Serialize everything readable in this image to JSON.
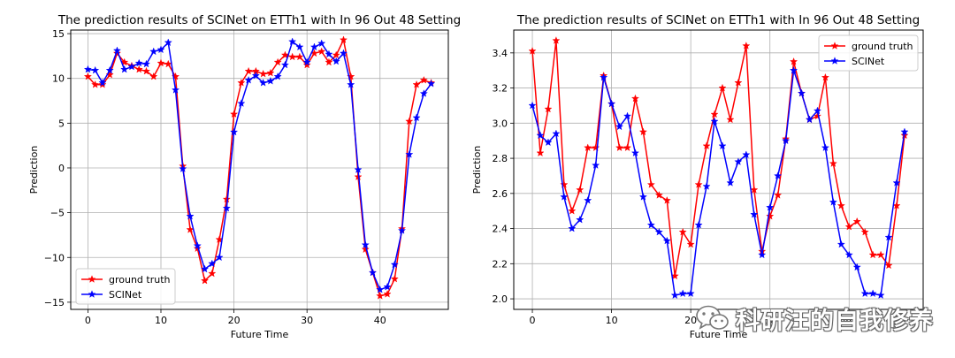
{
  "chart_data": [
    {
      "type": "line",
      "title": "The prediction results of SCINet on ETTh1 with In 96 Out 48 Setting",
      "xlabel": "Future Time",
      "ylabel": "Prediction",
      "xlim": [
        -2.35,
        49.35
      ],
      "ylim": [
        -15.8,
        15.4
      ],
      "xticks": [
        0,
        10,
        20,
        30,
        40
      ],
      "yticks": [
        -15,
        -10,
        -5,
        0,
        5,
        10,
        15
      ],
      "xtick_labels": [
        "0",
        "10",
        "20",
        "30",
        "40"
      ],
      "ytick_labels": [
        "−15",
        "−10",
        "−5",
        "0",
        "5",
        "10",
        "15"
      ],
      "grid": true,
      "legend_position": "lower-left",
      "x": [
        0,
        1,
        2,
        3,
        4,
        5,
        6,
        7,
        8,
        9,
        10,
        11,
        12,
        13,
        14,
        15,
        16,
        17,
        18,
        19,
        20,
        21,
        22,
        23,
        24,
        25,
        26,
        27,
        28,
        29,
        30,
        31,
        32,
        33,
        34,
        35,
        36,
        37,
        38,
        39,
        40,
        41,
        42,
        43,
        44,
        45,
        46,
        47
      ],
      "series": [
        {
          "name": "ground truth",
          "color": "#ff0000",
          "values": [
            10.2,
            9.3,
            9.3,
            10.4,
            12.8,
            11.8,
            11.4,
            11.0,
            10.8,
            10.2,
            11.7,
            11.6,
            10.2,
            0.2,
            -6.9,
            -9.0,
            -12.6,
            -11.8,
            -8.0,
            -3.5,
            6.0,
            9.5,
            10.8,
            10.8,
            10.5,
            10.6,
            11.8,
            12.6,
            12.4,
            12.4,
            11.5,
            12.8,
            13.0,
            11.8,
            12.6,
            14.3,
            10.2,
            -1.0,
            -9.1,
            -11.7,
            -14.3,
            -14.1,
            -12.4,
            -6.8,
            5.2,
            9.3,
            9.8,
            9.5
          ]
        },
        {
          "name": "SCINet",
          "color": "#0000ff",
          "values": [
            11.0,
            10.9,
            9.5,
            10.9,
            13.1,
            11.0,
            11.3,
            11.7,
            11.6,
            13.0,
            13.2,
            14.0,
            8.7,
            -0.1,
            -5.4,
            -8.7,
            -11.3,
            -10.7,
            -10.0,
            -4.5,
            4.0,
            7.2,
            9.8,
            10.3,
            9.5,
            9.7,
            10.2,
            11.5,
            14.1,
            13.5,
            11.8,
            13.5,
            13.9,
            12.7,
            11.9,
            12.8,
            9.3,
            -0.2,
            -8.6,
            -11.7,
            -13.6,
            -13.3,
            -10.8,
            -7.0,
            1.5,
            5.6,
            8.3,
            9.4
          ]
        }
      ]
    },
    {
      "type": "line",
      "title": "The prediction results of SCINet on ETTh1 with In 96 Out 48 Setting",
      "xlabel": "Future Time",
      "ylabel": "Prediction",
      "xlim": [
        -2.35,
        49.35
      ],
      "ylim": [
        1.94,
        3.53
      ],
      "xticks": [
        0,
        10,
        20,
        30,
        40
      ],
      "yticks": [
        2.0,
        2.2,
        2.4,
        2.6,
        2.8,
        3.0,
        3.2,
        3.4
      ],
      "xtick_labels": [
        "0",
        "10",
        "20",
        "30",
        "40"
      ],
      "ytick_labels": [
        "2.0",
        "2.2",
        "2.4",
        "2.6",
        "2.8",
        "3.0",
        "3.2",
        "3.4"
      ],
      "grid": true,
      "legend_position": "upper-right",
      "x": [
        0,
        1,
        2,
        3,
        4,
        5,
        6,
        7,
        8,
        9,
        10,
        11,
        12,
        13,
        14,
        15,
        16,
        17,
        18,
        19,
        20,
        21,
        22,
        23,
        24,
        25,
        26,
        27,
        28,
        29,
        30,
        31,
        32,
        33,
        34,
        35,
        36,
        37,
        38,
        39,
        40,
        41,
        42,
        43,
        44,
        45,
        46,
        47
      ],
      "series": [
        {
          "name": "ground truth",
          "color": "#ff0000",
          "values": [
            3.41,
            2.83,
            3.08,
            3.47,
            2.65,
            2.5,
            2.62,
            2.86,
            2.86,
            3.27,
            3.11,
            2.86,
            2.86,
            3.14,
            2.95,
            2.65,
            2.59,
            2.56,
            2.13,
            2.38,
            2.31,
            2.65,
            2.87,
            3.05,
            3.2,
            3.02,
            3.23,
            3.44,
            2.62,
            2.27,
            2.47,
            2.59,
            2.91,
            3.35,
            3.17,
            3.02,
            3.04,
            3.26,
            2.77,
            2.53,
            2.41,
            2.44,
            2.38,
            2.25,
            2.25,
            2.19,
            2.53,
            2.93
          ]
        },
        {
          "name": "SCINet",
          "color": "#0000ff",
          "values": [
            3.1,
            2.93,
            2.89,
            2.94,
            2.58,
            2.4,
            2.45,
            2.56,
            2.76,
            3.26,
            3.11,
            2.98,
            3.04,
            2.83,
            2.58,
            2.42,
            2.38,
            2.33,
            2.02,
            2.03,
            2.03,
            2.42,
            2.64,
            3.01,
            2.87,
            2.66,
            2.78,
            2.82,
            2.48,
            2.25,
            2.52,
            2.7,
            2.9,
            3.3,
            3.17,
            3.02,
            3.07,
            2.86,
            2.55,
            2.31,
            2.25,
            2.18,
            2.03,
            2.03,
            2.02,
            2.35,
            2.66,
            2.95
          ]
        }
      ]
    }
  ],
  "watermark": {
    "text": "科研汪的自我修养",
    "icon": "wechat-icon"
  }
}
